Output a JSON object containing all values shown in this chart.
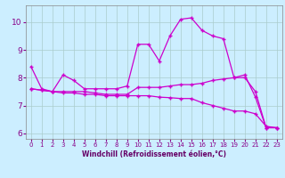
{
  "xlabel": "Windchill (Refroidissement éolien,°C)",
  "bg_color": "#cceeff",
  "grid_color": "#aacccc",
  "line_color": "#cc00cc",
  "xlim": [
    -0.5,
    23.5
  ],
  "ylim": [
    5.8,
    10.6
  ],
  "xticks": [
    0,
    1,
    2,
    3,
    4,
    5,
    6,
    7,
    8,
    9,
    10,
    11,
    12,
    13,
    14,
    15,
    16,
    17,
    18,
    19,
    20,
    21,
    22,
    23
  ],
  "yticks": [
    6,
    7,
    8,
    9,
    10
  ],
  "line1_x": [
    0,
    1,
    2,
    3,
    4,
    5,
    6,
    7,
    8,
    9,
    10,
    11,
    12,
    13,
    14,
    15,
    16,
    17,
    18,
    19,
    20,
    21,
    22,
    23
  ],
  "line1_y": [
    8.4,
    7.6,
    7.5,
    8.1,
    7.9,
    7.6,
    7.6,
    7.6,
    7.6,
    7.7,
    9.2,
    9.2,
    8.6,
    9.5,
    10.1,
    10.15,
    9.7,
    9.5,
    9.4,
    8.0,
    8.1,
    7.3,
    6.2,
    6.2
  ],
  "line2_x": [
    0,
    1,
    2,
    3,
    4,
    5,
    6,
    7,
    8,
    9,
    10,
    11,
    12,
    13,
    14,
    15,
    16,
    17,
    18,
    19,
    20,
    21,
    22,
    23
  ],
  "line2_y": [
    7.6,
    7.55,
    7.5,
    7.5,
    7.5,
    7.5,
    7.45,
    7.4,
    7.4,
    7.4,
    7.65,
    7.65,
    7.65,
    7.7,
    7.75,
    7.75,
    7.8,
    7.9,
    7.95,
    8.0,
    8.0,
    7.5,
    6.2,
    6.2
  ],
  "line3_x": [
    0,
    1,
    2,
    3,
    4,
    5,
    6,
    7,
    8,
    9,
    10,
    11,
    12,
    13,
    14,
    15,
    16,
    17,
    18,
    19,
    20,
    21,
    22,
    23
  ],
  "line3_y": [
    7.6,
    7.55,
    7.5,
    7.45,
    7.45,
    7.4,
    7.4,
    7.35,
    7.35,
    7.35,
    7.35,
    7.35,
    7.3,
    7.28,
    7.25,
    7.25,
    7.1,
    7.0,
    6.9,
    6.8,
    6.8,
    6.7,
    6.25,
    6.2
  ],
  "marker": "+",
  "markersize": 3,
  "linewidth": 0.9,
  "tick_fontsize": 5,
  "xlabel_fontsize": 5.5
}
